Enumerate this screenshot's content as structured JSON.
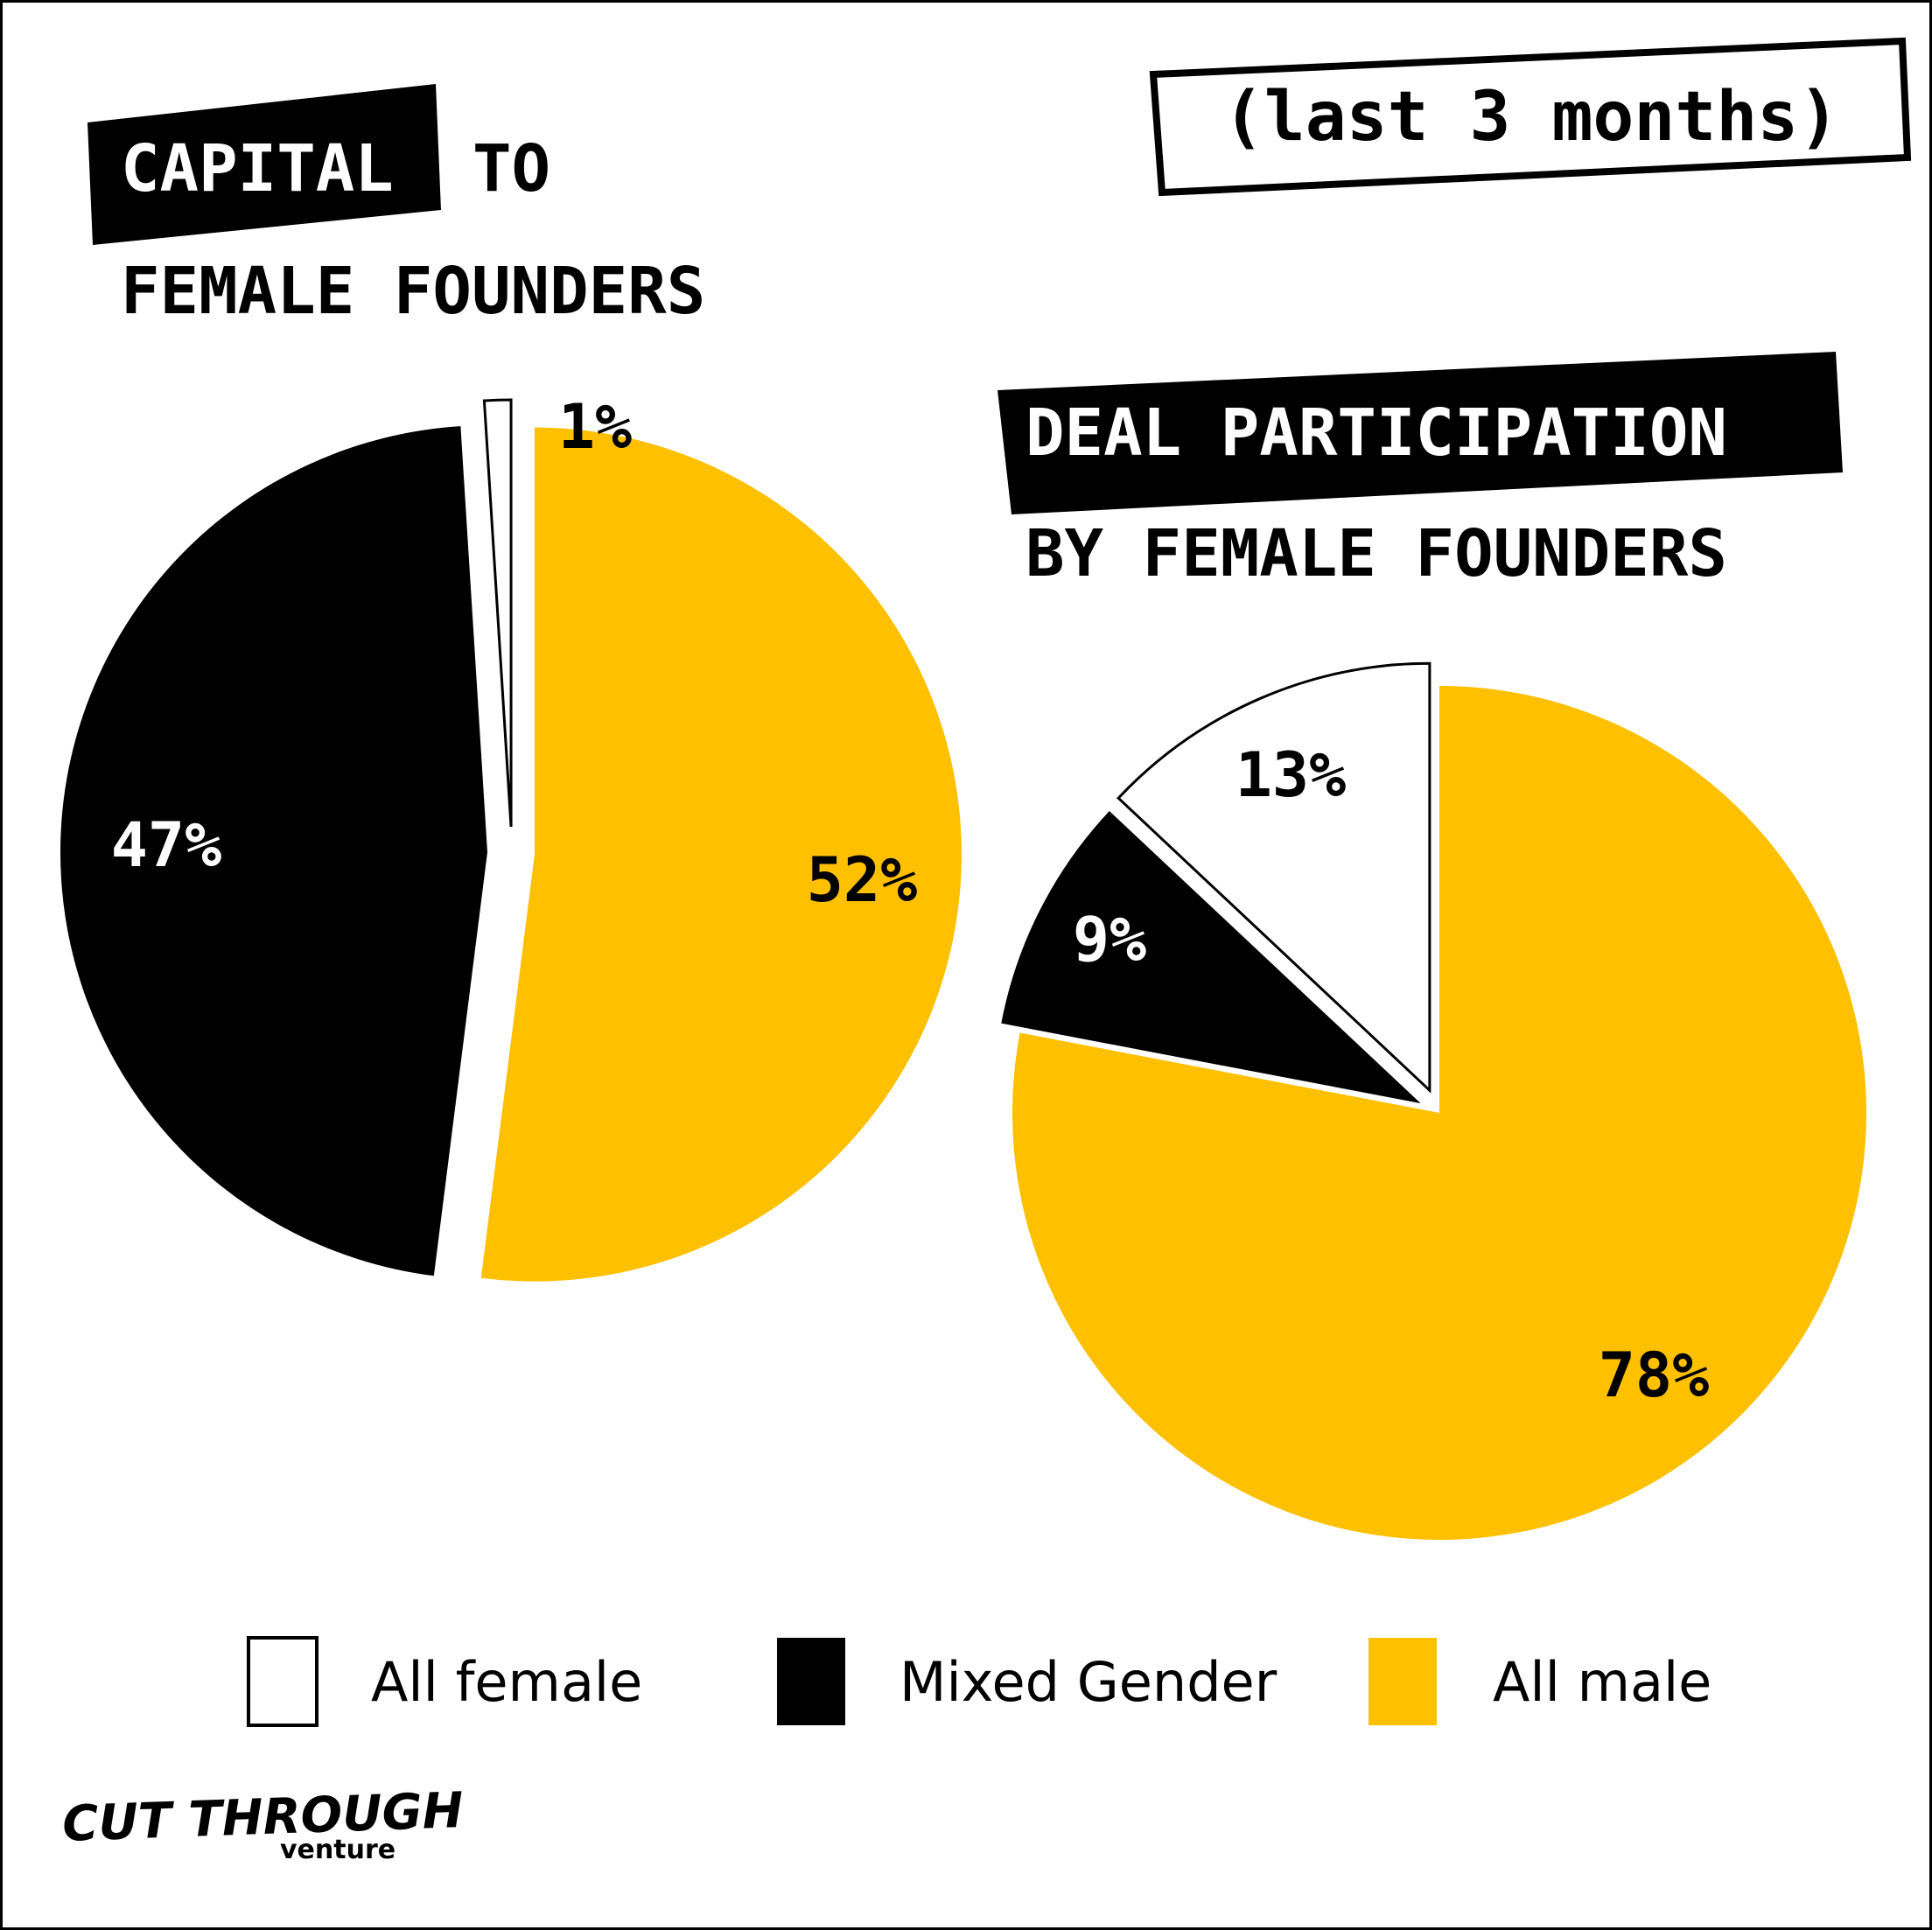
{
  "colors": {
    "all_female": "#ffffff",
    "mixed_gender": "#000000",
    "all_male": "#ffc000",
    "outline": "#000000"
  },
  "period_label": "(last 3 months)",
  "left_title": {
    "highlight": "CAPITAL",
    "rest": "TO",
    "line2": "FEMALE FOUNDERS"
  },
  "right_title": {
    "line1": "DEAL PARTICIPATION",
    "line2": "BY FEMALE FOUNDERS"
  },
  "legend": [
    {
      "label": "All female",
      "color": "#ffffff"
    },
    {
      "label": "Mixed Gender",
      "color": "#000000"
    },
    {
      "label": "All male",
      "color": "#ffc000"
    }
  ],
  "logo": {
    "main": "CUT THROUGH",
    "sub": "venture"
  },
  "chart_data": [
    {
      "type": "pie",
      "title": "CAPITAL TO FEMALE FOUNDERS",
      "categories": [
        "All female",
        "Mixed Gender",
        "All male"
      ],
      "values": [
        1,
        47,
        52
      ],
      "labels": [
        "1%",
        "47%",
        "52%"
      ]
    },
    {
      "type": "pie",
      "title": "DEAL PARTICIPATION BY FEMALE FOUNDERS",
      "categories": [
        "All female",
        "Mixed Gender",
        "All male"
      ],
      "values": [
        13,
        9,
        78
      ],
      "labels": [
        "13%",
        "9%",
        "78%"
      ]
    }
  ]
}
